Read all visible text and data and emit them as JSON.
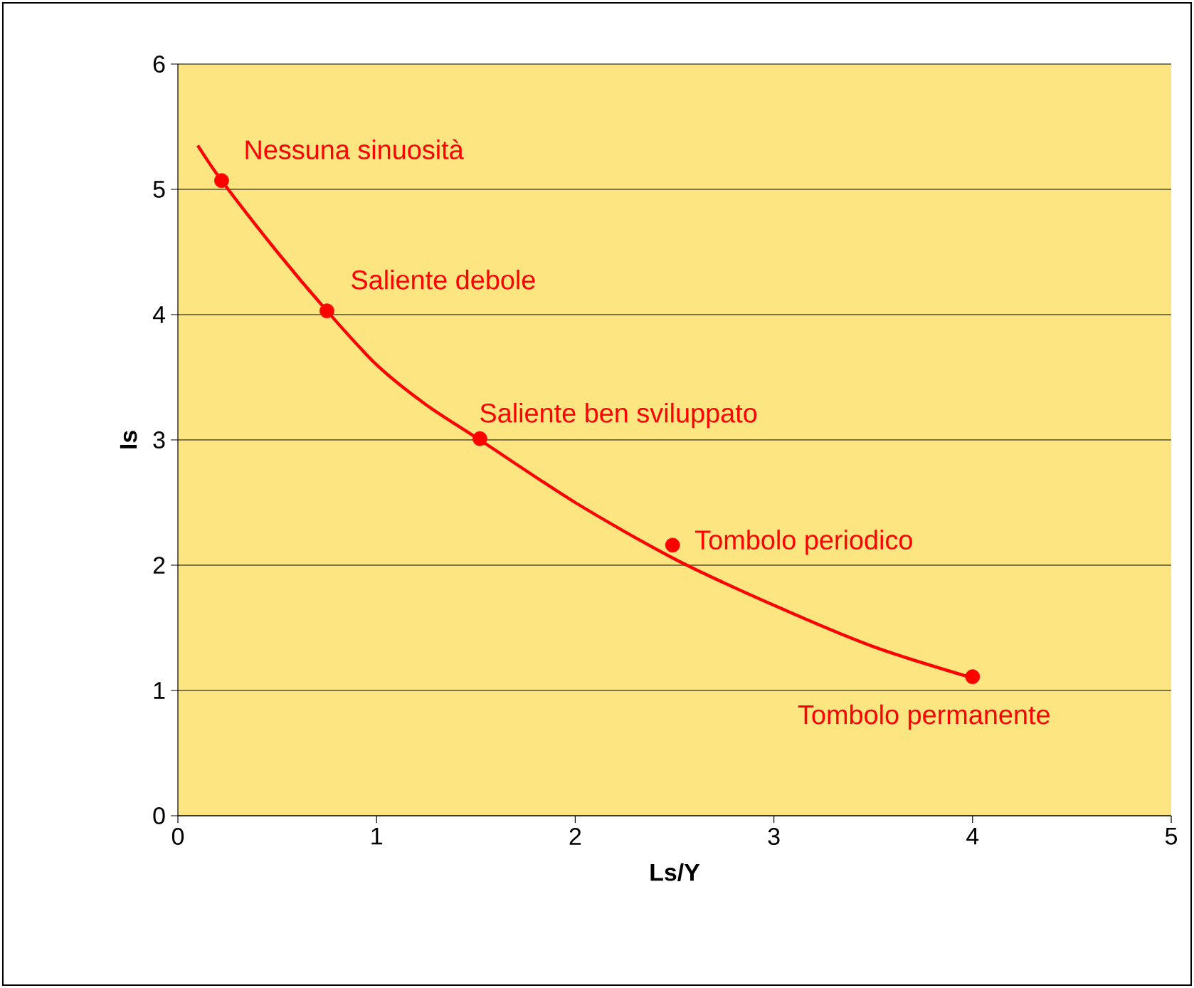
{
  "chart_data": {
    "type": "line",
    "xlabel": "Ls/Y",
    "ylabel": "Is",
    "xlim": [
      0,
      5
    ],
    "ylim": [
      0,
      6
    ],
    "xticks": [
      0,
      1,
      2,
      3,
      4,
      5
    ],
    "yticks": [
      0,
      1,
      2,
      3,
      4,
      5,
      6
    ],
    "grid": "y",
    "series": [
      {
        "color": "#ff0000",
        "marker": "none",
        "x": [
          0.1,
          0.22,
          0.5,
          0.75,
          1.0,
          1.25,
          1.52,
          2.0,
          2.5,
          3.0,
          3.5,
          4.0
        ],
        "values": [
          5.35,
          5.07,
          4.5,
          4.03,
          3.6,
          3.28,
          3.0,
          2.5,
          2.05,
          1.68,
          1.35,
          1.1
        ]
      },
      {
        "type": "scatter",
        "color": "#ff0000",
        "marker": "circle",
        "x": [
          0.22,
          0.75,
          1.52,
          2.49,
          4.0
        ],
        "values": [
          5.07,
          4.03,
          3.01,
          2.16,
          1.11
        ]
      }
    ],
    "annotations": [
      {
        "text": "Nessuna sinuosità",
        "x": 0.22,
        "y": 5.07
      },
      {
        "text": "Saliente debole",
        "x": 0.75,
        "y": 4.03
      },
      {
        "text": "Saliente ben sviluppato",
        "x": 1.52,
        "y": 3.01
      },
      {
        "text": "Tombolo periodico",
        "x": 2.49,
        "y": 2.16
      },
      {
        "text": "Tombolo permanente",
        "x": 4.0,
        "y": 1.11
      }
    ]
  }
}
